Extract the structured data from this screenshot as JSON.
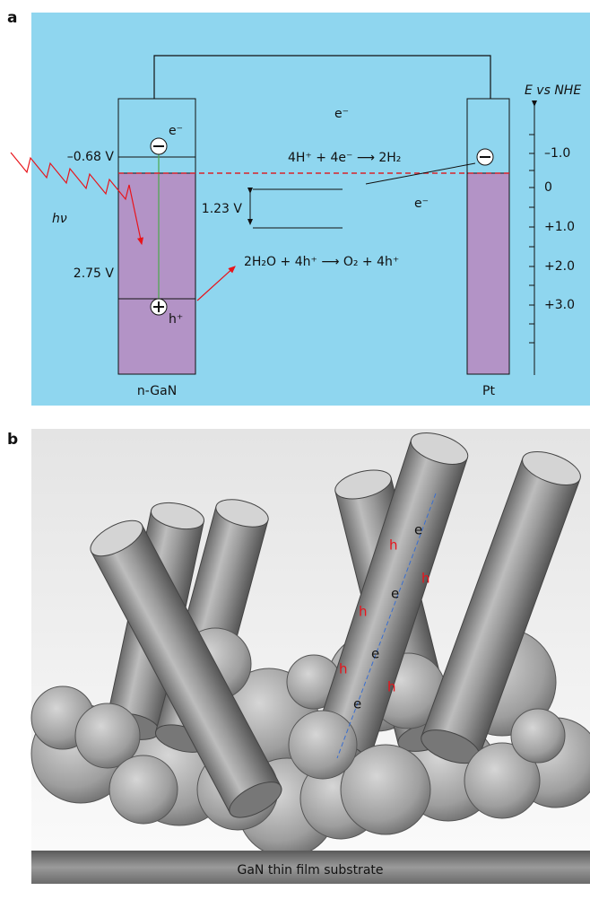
{
  "panel_a": {
    "label": "a",
    "electrons": [
      "e⁻",
      "e⁻",
      "e⁻"
    ],
    "holes": [
      "h⁺"
    ],
    "potentials": [
      "–0.68 V",
      "2.75 V"
    ],
    "gap": "1.23 V",
    "photon": "hν",
    "reduction": "4H⁺ + 4e⁻ ⟶ 2H₂",
    "oxidation": "2H₂O + 4h⁺ ⟶ O₂ + 4h⁺",
    "electrodes": [
      "n-GaN",
      "Pt"
    ],
    "axis_title": "E vs NHE",
    "axis_labels": [
      "–1.0",
      "0",
      "+1.0",
      "+2.0",
      "+3.0"
    ]
  },
  "panel_b": {
    "label": "b",
    "holes": [
      "h",
      "h",
      "h",
      "h",
      "h"
    ],
    "electrons": [
      "e",
      "e",
      "e",
      "e"
    ],
    "substrate": "GaN thin film substrate"
  }
}
